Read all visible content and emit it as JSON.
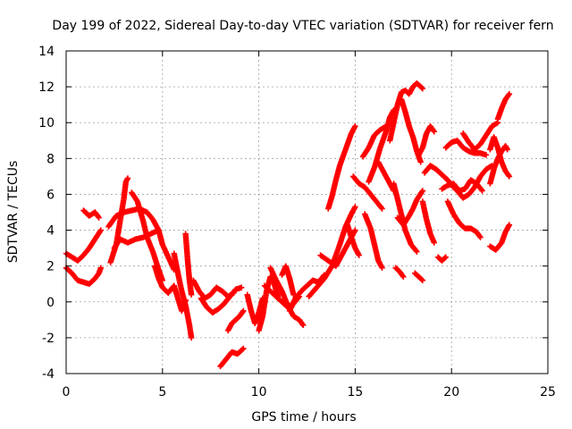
{
  "chart_data": {
    "type": "scatter",
    "title": "Day 199 of 2022, Sidereal Day-to-day VTEC variation (SDTVAR) for receiver fern",
    "xlabel": "GPS time / hours",
    "ylabel": "SDTVAR / TECUs",
    "xlim": [
      0,
      25
    ],
    "ylim": [
      -4,
      14
    ],
    "xticks": [
      "0",
      "5",
      "10",
      "15",
      "20",
      "25"
    ],
    "yticks": [
      "-4",
      "-2",
      "0",
      "2",
      "4",
      "6",
      "8",
      "10",
      "12",
      "14"
    ],
    "grid": true,
    "marker": "+",
    "color": "#ff0000",
    "series": [
      {
        "points": [
          [
            0.0,
            2.7
          ],
          [
            0.3,
            2.5
          ],
          [
            0.6,
            2.3
          ],
          [
            0.9,
            2.6
          ],
          [
            1.2,
            3.0
          ],
          [
            1.5,
            3.5
          ],
          [
            1.8,
            4.0
          ]
        ]
      },
      {
        "points": [
          [
            0.0,
            1.9
          ],
          [
            0.3,
            1.6
          ],
          [
            0.6,
            1.2
          ],
          [
            0.9,
            1.1
          ],
          [
            1.2,
            1.0
          ],
          [
            1.5,
            1.3
          ],
          [
            1.7,
            1.6
          ],
          [
            1.8,
            1.9
          ]
        ]
      },
      {
        "points": [
          [
            0.9,
            5.1
          ],
          [
            1.2,
            4.8
          ],
          [
            1.5,
            5.0
          ],
          [
            1.7,
            4.7
          ]
        ]
      },
      {
        "points": [
          [
            2.3,
            2.2
          ],
          [
            2.6,
            3.2
          ],
          [
            2.8,
            4.5
          ],
          [
            3.0,
            5.8
          ],
          [
            3.1,
            6.7
          ],
          [
            3.2,
            6.9
          ]
        ]
      },
      {
        "points": [
          [
            2.5,
            3.0
          ],
          [
            2.8,
            3.5
          ],
          [
            3.2,
            3.3
          ],
          [
            3.6,
            3.5
          ],
          [
            4.0,
            3.6
          ],
          [
            4.4,
            3.8
          ],
          [
            4.8,
            4.0
          ]
        ]
      },
      {
        "points": [
          [
            2.2,
            4.2
          ],
          [
            2.6,
            4.8
          ],
          [
            3.0,
            5.0
          ],
          [
            3.4,
            5.1
          ],
          [
            3.8,
            5.2
          ],
          [
            4.2,
            5.0
          ],
          [
            4.5,
            4.6
          ],
          [
            4.8,
            4.0
          ],
          [
            5.0,
            3.2
          ],
          [
            5.3,
            2.5
          ],
          [
            5.6,
            1.8
          ]
        ]
      },
      {
        "points": [
          [
            3.4,
            6.1
          ],
          [
            3.7,
            5.6
          ],
          [
            4.0,
            4.5
          ],
          [
            4.2,
            3.6
          ],
          [
            4.5,
            2.8
          ],
          [
            4.8,
            1.8
          ],
          [
            5.0,
            1.2
          ]
        ]
      },
      {
        "points": [
          [
            4.6,
            2.0
          ],
          [
            4.8,
            1.3
          ],
          [
            5.0,
            0.8
          ],
          [
            5.3,
            0.5
          ],
          [
            5.6,
            0.9
          ],
          [
            5.8,
            0.2
          ],
          [
            6.0,
            -0.5
          ],
          [
            6.2,
            0.1
          ]
        ]
      },
      {
        "points": [
          [
            5.6,
            2.7
          ],
          [
            5.8,
            1.6
          ],
          [
            6.0,
            0.6
          ],
          [
            6.2,
            -0.2
          ],
          [
            6.4,
            -1.3
          ],
          [
            6.5,
            -2.0
          ]
        ]
      },
      {
        "points": [
          [
            6.2,
            3.8
          ],
          [
            6.3,
            2.4
          ],
          [
            6.4,
            1.2
          ],
          [
            6.5,
            0.4
          ]
        ]
      },
      {
        "points": [
          [
            6.6,
            1.2
          ],
          [
            6.9,
            0.6
          ],
          [
            7.2,
            0.2
          ],
          [
            7.5,
            0.4
          ],
          [
            7.8,
            0.8
          ],
          [
            8.1,
            0.6
          ],
          [
            8.4,
            0.3
          ],
          [
            8.7,
            0.5
          ]
        ]
      },
      {
        "points": [
          [
            7.0,
            0.2
          ],
          [
            7.3,
            -0.3
          ],
          [
            7.6,
            -0.6
          ],
          [
            7.9,
            -0.4
          ],
          [
            8.2,
            -0.1
          ],
          [
            8.5,
            0.3
          ],
          [
            8.8,
            0.7
          ],
          [
            9.1,
            0.8
          ]
        ]
      },
      {
        "points": [
          [
            8.0,
            -3.6
          ],
          [
            8.3,
            -3.2
          ],
          [
            8.6,
            -2.8
          ],
          [
            8.9,
            -2.9
          ],
          [
            9.2,
            -2.6
          ]
        ]
      },
      {
        "points": [
          [
            8.4,
            -1.6
          ],
          [
            8.6,
            -1.2
          ],
          [
            8.8,
            -1.0
          ],
          [
            9.0,
            -0.8
          ],
          [
            9.2,
            -0.5
          ]
        ]
      },
      {
        "points": [
          [
            9.4,
            0.4
          ],
          [
            9.6,
            -0.5
          ],
          [
            9.8,
            -1.2
          ],
          [
            10.0,
            -0.6
          ],
          [
            10.2,
            0.2
          ]
        ]
      },
      {
        "points": [
          [
            10.0,
            -1.6
          ],
          [
            10.2,
            -0.8
          ],
          [
            10.4,
            0.6
          ],
          [
            10.6,
            1.4
          ],
          [
            10.8,
            1.0
          ],
          [
            11.0,
            0.3
          ]
        ]
      },
      {
        "points": [
          [
            10.3,
            0.9
          ],
          [
            10.6,
            0.6
          ],
          [
            10.9,
            0.3
          ],
          [
            11.2,
            0.0
          ],
          [
            11.5,
            -0.3
          ],
          [
            11.8,
            -0.1
          ],
          [
            12.1,
            0.3
          ]
        ]
      },
      {
        "points": [
          [
            10.6,
            1.9
          ],
          [
            10.9,
            1.2
          ],
          [
            11.2,
            0.6
          ],
          [
            11.5,
            -0.2
          ],
          [
            11.8,
            -0.8
          ],
          [
            12.1,
            -1.0
          ],
          [
            12.3,
            -1.3
          ]
        ]
      },
      {
        "points": [
          [
            11.2,
            1.5
          ],
          [
            11.4,
            2.0
          ],
          [
            11.6,
            1.3
          ],
          [
            11.8,
            0.4
          ]
        ]
      },
      {
        "points": [
          [
            11.6,
            -0.5
          ],
          [
            11.9,
            0.2
          ],
          [
            12.2,
            0.6
          ],
          [
            12.5,
            0.9
          ],
          [
            12.8,
            1.2
          ],
          [
            13.1,
            1.1
          ],
          [
            13.4,
            1.5
          ]
        ]
      },
      {
        "points": [
          [
            12.6,
            0.3
          ],
          [
            13.0,
            0.8
          ],
          [
            13.4,
            1.3
          ],
          [
            13.8,
            2.0
          ],
          [
            14.2,
            3.2
          ],
          [
            14.5,
            4.2
          ],
          [
            14.8,
            4.9
          ],
          [
            15.0,
            5.3
          ]
        ]
      },
      {
        "points": [
          [
            13.2,
            2.6
          ],
          [
            13.6,
            2.3
          ],
          [
            14.0,
            2.0
          ],
          [
            14.4,
            2.8
          ],
          [
            14.8,
            3.6
          ],
          [
            15.0,
            4.0
          ]
        ]
      },
      {
        "points": [
          [
            13.6,
            5.2
          ],
          [
            13.8,
            5.9
          ],
          [
            14.0,
            6.8
          ],
          [
            14.2,
            7.6
          ],
          [
            14.4,
            8.2
          ],
          [
            14.6,
            8.8
          ],
          [
            14.8,
            9.4
          ],
          [
            15.0,
            9.8
          ]
        ]
      },
      {
        "points": [
          [
            14.6,
            4.3
          ],
          [
            14.8,
            3.6
          ],
          [
            15.0,
            3.0
          ],
          [
            15.2,
            2.6
          ]
        ]
      },
      {
        "points": [
          [
            14.9,
            7.0
          ],
          [
            15.2,
            6.6
          ],
          [
            15.5,
            6.4
          ],
          [
            15.8,
            6.0
          ],
          [
            16.1,
            5.6
          ],
          [
            16.4,
            5.2
          ]
        ]
      },
      {
        "points": [
          [
            15.4,
            8.1
          ],
          [
            15.7,
            8.6
          ],
          [
            16.0,
            9.3
          ],
          [
            16.3,
            9.6
          ],
          [
            16.6,
            9.8
          ]
        ]
      },
      {
        "points": [
          [
            15.5,
            4.9
          ],
          [
            15.8,
            4.1
          ],
          [
            16.0,
            3.2
          ],
          [
            16.2,
            2.3
          ],
          [
            16.4,
            1.9
          ]
        ]
      },
      {
        "points": [
          [
            15.7,
            6.7
          ],
          [
            16.0,
            7.5
          ],
          [
            16.3,
            8.6
          ],
          [
            16.6,
            9.5
          ],
          [
            16.8,
            10.3
          ],
          [
            17.0,
            10.7
          ]
        ]
      },
      {
        "points": [
          [
            16.2,
            7.8
          ],
          [
            16.5,
            7.2
          ],
          [
            16.8,
            6.6
          ],
          [
            17.0,
            6.2
          ]
        ]
      },
      {
        "points": [
          [
            16.8,
            9.0
          ],
          [
            17.0,
            10.0
          ],
          [
            17.2,
            11.0
          ],
          [
            17.4,
            11.7
          ],
          [
            17.6,
            11.8
          ],
          [
            17.8,
            11.6
          ],
          [
            18.0,
            12.0
          ],
          [
            18.2,
            12.2
          ],
          [
            18.5,
            11.9
          ]
        ]
      },
      {
        "points": [
          [
            17.0,
            6.6
          ],
          [
            17.3,
            5.3
          ],
          [
            17.6,
            4.0
          ],
          [
            17.9,
            3.2
          ],
          [
            18.2,
            2.8
          ]
        ]
      },
      {
        "points": [
          [
            17.4,
            11.3
          ],
          [
            17.6,
            10.6
          ],
          [
            17.8,
            9.8
          ],
          [
            18.0,
            9.2
          ],
          [
            18.2,
            8.4
          ],
          [
            18.4,
            7.8
          ]
        ]
      },
      {
        "points": [
          [
            17.2,
            4.7
          ],
          [
            17.5,
            4.3
          ],
          [
            17.8,
            4.8
          ],
          [
            18.0,
            5.2
          ],
          [
            18.2,
            5.7
          ],
          [
            18.5,
            6.2
          ]
        ]
      },
      {
        "points": [
          [
            17.1,
            1.9
          ],
          [
            17.3,
            1.7
          ],
          [
            17.5,
            1.4
          ]
        ]
      },
      {
        "points": [
          [
            18.1,
            1.6
          ],
          [
            18.3,
            1.4
          ],
          [
            18.5,
            1.2
          ]
        ]
      },
      {
        "points": [
          [
            18.3,
            8.2
          ],
          [
            18.5,
            8.6
          ],
          [
            18.7,
            9.4
          ],
          [
            18.9,
            9.8
          ],
          [
            19.1,
            9.5
          ]
        ]
      },
      {
        "points": [
          [
            18.5,
            5.6
          ],
          [
            18.7,
            4.6
          ],
          [
            18.9,
            3.8
          ],
          [
            19.1,
            3.3
          ]
        ]
      },
      {
        "points": [
          [
            18.6,
            7.2
          ],
          [
            18.9,
            7.6
          ],
          [
            19.2,
            7.4
          ],
          [
            19.5,
            7.1
          ],
          [
            19.8,
            6.8
          ],
          [
            20.1,
            6.4
          ],
          [
            20.4,
            6.1
          ]
        ]
      },
      {
        "points": [
          [
            19.3,
            2.5
          ],
          [
            19.5,
            2.3
          ],
          [
            19.7,
            2.5
          ]
        ]
      },
      {
        "points": [
          [
            19.5,
            6.3
          ],
          [
            19.8,
            6.5
          ],
          [
            20.1,
            6.6
          ],
          [
            20.4,
            6.2
          ],
          [
            20.7,
            6.3
          ],
          [
            21.0,
            6.8
          ],
          [
            21.3,
            6.6
          ],
          [
            21.6,
            6.2
          ]
        ]
      },
      {
        "points": [
          [
            19.7,
            8.6
          ],
          [
            20.0,
            8.9
          ],
          [
            20.3,
            9.0
          ],
          [
            20.6,
            8.6
          ],
          [
            20.9,
            8.4
          ],
          [
            21.2,
            8.3
          ],
          [
            21.5,
            8.3
          ],
          [
            21.8,
            8.2
          ]
        ]
      },
      {
        "points": [
          [
            19.8,
            5.6
          ],
          [
            20.1,
            4.9
          ],
          [
            20.4,
            4.4
          ],
          [
            20.7,
            4.1
          ],
          [
            21.0,
            4.1
          ],
          [
            21.3,
            3.9
          ],
          [
            21.5,
            3.6
          ]
        ]
      },
      {
        "points": [
          [
            20.3,
            6.2
          ],
          [
            20.6,
            5.8
          ],
          [
            20.9,
            6.0
          ],
          [
            21.2,
            6.4
          ],
          [
            21.5,
            7.0
          ],
          [
            21.8,
            7.4
          ],
          [
            22.1,
            7.6
          ]
        ]
      },
      {
        "points": [
          [
            20.6,
            9.4
          ],
          [
            20.9,
            8.9
          ],
          [
            21.2,
            8.5
          ],
          [
            21.5,
            8.8
          ],
          [
            21.8,
            9.3
          ],
          [
            22.1,
            9.8
          ],
          [
            22.4,
            10.0
          ]
        ]
      },
      {
        "points": [
          [
            22.0,
            8.5
          ],
          [
            22.2,
            9.2
          ],
          [
            22.4,
            8.6
          ],
          [
            22.6,
            7.8
          ],
          [
            22.8,
            7.3
          ],
          [
            23.0,
            7.0
          ]
        ]
      },
      {
        "points": [
          [
            22.0,
            6.6
          ],
          [
            22.2,
            7.4
          ],
          [
            22.4,
            8.0
          ],
          [
            22.6,
            8.4
          ],
          [
            22.8,
            8.7
          ],
          [
            22.9,
            8.5
          ]
        ]
      },
      {
        "points": [
          [
            22.4,
            10.2
          ],
          [
            22.6,
            10.8
          ],
          [
            22.8,
            11.3
          ],
          [
            23.0,
            11.6
          ]
        ]
      },
      {
        "points": [
          [
            22.0,
            3.1
          ],
          [
            22.3,
            2.9
          ],
          [
            22.6,
            3.3
          ],
          [
            22.8,
            3.9
          ],
          [
            23.0,
            4.3
          ]
        ]
      }
    ]
  }
}
